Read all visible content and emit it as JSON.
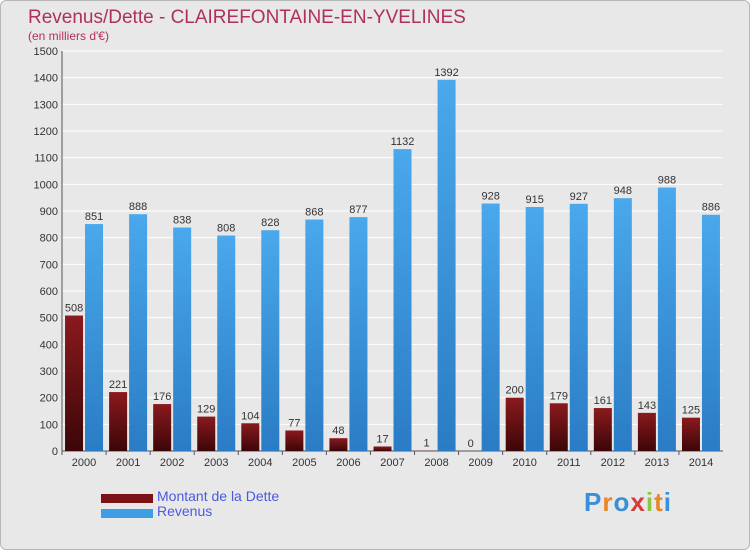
{
  "title": "Revenus/Dette - CLAIREFONTAINE-EN-YVELINES",
  "subtitle": "(en milliers d'€)",
  "logo": {
    "text": "Proxiti",
    "letters": [
      "P",
      "r",
      "o",
      "x",
      "i",
      "t",
      "i"
    ],
    "colors": [
      "#3a8fd8",
      "#e8862a",
      "#3a8fd8",
      "#d83a3a",
      "#8cc63f",
      "#e8862a",
      "#3a8fd8"
    ]
  },
  "legend": [
    {
      "label": "Montant de la Dette",
      "color": "#7a1216"
    },
    {
      "label": "Revenus",
      "color": "#3d9ee4"
    }
  ],
  "chart_data": {
    "type": "bar",
    "title": "Revenus/Dette - CLAIREFONTAINE-EN-YVELINES",
    "ylabel": "(en milliers d'€)",
    "xlabel": "",
    "ylim": [
      0,
      1500
    ],
    "ytick_step": 100,
    "grid": true,
    "legend_position": "bottom-left",
    "categories": [
      "2000",
      "2001",
      "2002",
      "2003",
      "2004",
      "2005",
      "2006",
      "2007",
      "2008",
      "2009",
      "2010",
      "2011",
      "2012",
      "2013",
      "2014"
    ],
    "series": [
      {
        "name": "Montant de la Dette",
        "color": "#7a1216",
        "values": [
          508,
          221,
          176,
          129,
          104,
          77,
          48,
          17,
          1,
          0,
          200,
          179,
          161,
          143,
          125
        ]
      },
      {
        "name": "Revenus",
        "color": "#3d9ee4",
        "values": [
          851,
          888,
          838,
          808,
          828,
          868,
          877,
          1132,
          1392,
          928,
          915,
          927,
          948,
          988,
          886
        ]
      }
    ]
  }
}
